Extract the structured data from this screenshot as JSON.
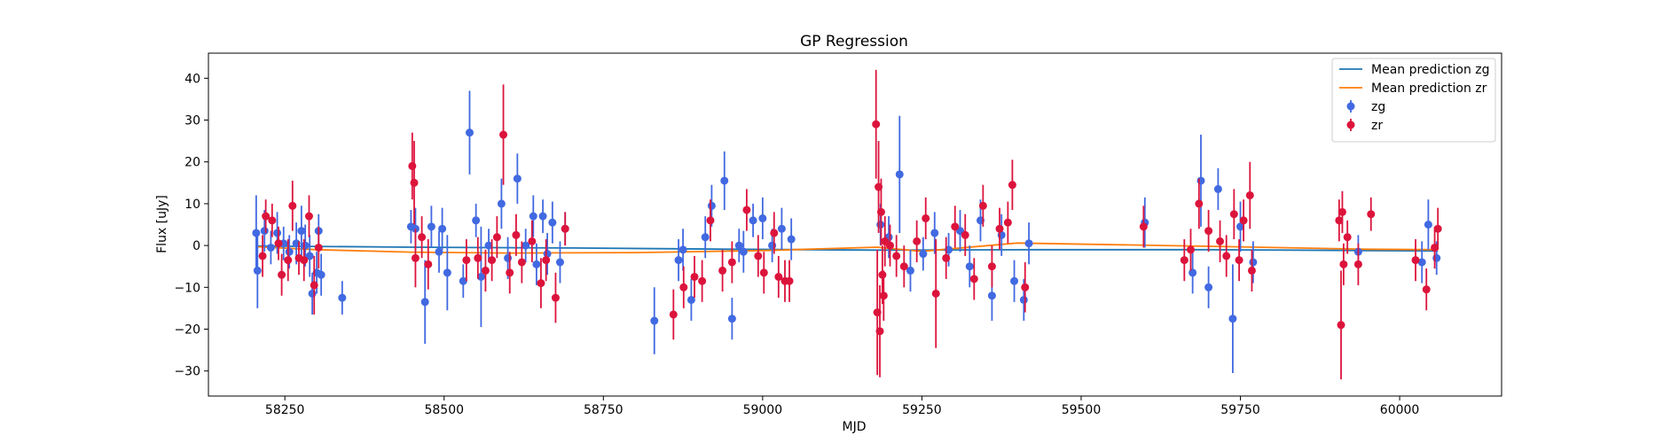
{
  "chart_data": {
    "type": "scatter",
    "title": "GP Regression",
    "xlabel": "MJD",
    "ylabel": "Flux [uJy]",
    "xlim": [
      58130,
      60160
    ],
    "ylim": [
      -36,
      46
    ],
    "xticks": [
      58250,
      58500,
      58750,
      59000,
      59250,
      59500,
      59750,
      60000
    ],
    "yticks": [
      -30,
      -20,
      -10,
      0,
      10,
      20,
      30,
      40
    ],
    "grid": false,
    "legend_position": "top-right",
    "series": [
      {
        "name": "Mean prediction zg",
        "kind": "line",
        "color": "#1f77b4",
        "x": [
          58205,
          58450,
          58700,
          58950,
          59180,
          59420,
          59700,
          59950,
          60060
        ],
        "y": [
          -0.1,
          -0.4,
          -0.6,
          -0.9,
          -1.1,
          -1.0,
          -1.0,
          -1.2,
          -1.3
        ]
      },
      {
        "name": "Mean prediction zr",
        "kind": "line",
        "color": "#ff7f0e",
        "x": [
          58205,
          58300,
          58450,
          58600,
          58800,
          59000,
          59180,
          59250,
          59400,
          59700,
          59950,
          60060
        ],
        "y": [
          -0.3,
          -1.0,
          -1.6,
          -1.8,
          -1.7,
          -1.2,
          -0.4,
          -1.4,
          0.6,
          -0.2,
          -0.9,
          -1.0
        ]
      },
      {
        "name": "zg",
        "kind": "errorbar",
        "color": "#4169e1",
        "points": [
          [
            58205,
            3,
            9
          ],
          [
            58207,
            -6,
            9
          ],
          [
            58218,
            3.5,
            5
          ],
          [
            58228,
            -0.5,
            4
          ],
          [
            58238,
            3,
            5
          ],
          [
            58248,
            0.5,
            4
          ],
          [
            58257,
            -1.5,
            4
          ],
          [
            58268,
            0.5,
            5
          ],
          [
            58276,
            3.5,
            6
          ],
          [
            58282,
            0,
            5
          ],
          [
            58289,
            -2.5,
            5
          ],
          [
            58293,
            -11.5,
            5
          ],
          [
            58300,
            -6.5,
            5
          ],
          [
            58303,
            3.5,
            4
          ],
          [
            58307,
            -7,
            5
          ],
          [
            58340,
            -12.5,
            4
          ],
          [
            58448,
            4.5,
            4
          ],
          [
            58455,
            4,
            5
          ],
          [
            58470,
            -13.5,
            10
          ],
          [
            58480,
            4.5,
            5
          ],
          [
            58492,
            -1.5,
            5
          ],
          [
            58497,
            4,
            5
          ],
          [
            58505,
            -6.5,
            9
          ],
          [
            58530,
            -8.5,
            4
          ],
          [
            58540,
            27,
            10
          ],
          [
            58550,
            6,
            4
          ],
          [
            58558,
            -7.5,
            12
          ],
          [
            58570,
            0,
            4
          ],
          [
            58590,
            10,
            6
          ],
          [
            58600,
            -3,
            5
          ],
          [
            58615,
            16,
            6
          ],
          [
            58628,
            0,
            4
          ],
          [
            58640,
            7,
            5
          ],
          [
            58645,
            -4.5,
            5
          ],
          [
            58655,
            7,
            4
          ],
          [
            58662,
            -2,
            5
          ],
          [
            58670,
            5.5,
            5
          ],
          [
            58682,
            -4,
            5
          ],
          [
            58690,
            4,
            4
          ],
          [
            58830,
            -18,
            8
          ],
          [
            58868,
            -3.5,
            5
          ],
          [
            58875,
            -1,
            5
          ],
          [
            58888,
            -13,
            5
          ],
          [
            58910,
            2,
            5
          ],
          [
            58920,
            9.5,
            5
          ],
          [
            58940,
            15.5,
            7
          ],
          [
            58952,
            -17.5,
            5
          ],
          [
            58963,
            0,
            4
          ],
          [
            58970,
            -1.5,
            5
          ],
          [
            58985,
            6,
            4
          ],
          [
            59000,
            6.5,
            5
          ],
          [
            59015,
            0,
            4
          ],
          [
            59030,
            4,
            5
          ],
          [
            59045,
            1.5,
            5
          ],
          [
            59185,
            5,
            5
          ],
          [
            59198,
            2,
            5
          ],
          [
            59215,
            17,
            14
          ],
          [
            59232,
            -6,
            5
          ],
          [
            59252,
            -2,
            4
          ],
          [
            59270,
            3,
            5
          ],
          [
            59292,
            -1,
            4
          ],
          [
            59310,
            3.5,
            5
          ],
          [
            59325,
            -5,
            5
          ],
          [
            59342,
            6,
            5
          ],
          [
            59360,
            -12,
            6
          ],
          [
            59375,
            2.5,
            5
          ],
          [
            59395,
            -8.5,
            5
          ],
          [
            59410,
            -13,
            5
          ],
          [
            59418,
            0.5,
            5
          ],
          [
            59600,
            5.5,
            6
          ],
          [
            59675,
            -6.5,
            5
          ],
          [
            59688,
            15.5,
            11
          ],
          [
            59700,
            -10,
            5
          ],
          [
            59715,
            13.5,
            5
          ],
          [
            59738,
            -17.5,
            13
          ],
          [
            59750,
            4.5,
            6
          ],
          [
            59770,
            -4,
            5
          ],
          [
            59935,
            -1.5,
            4
          ],
          [
            60035,
            -4,
            5
          ],
          [
            60045,
            5,
            6
          ],
          [
            60058,
            -3,
            4
          ]
        ]
      },
      {
        "name": "zr",
        "kind": "errorbar",
        "color": "#dc143c",
        "points": [
          [
            58215,
            -2.5,
            5
          ],
          [
            58220,
            7,
            4
          ],
          [
            58230,
            6,
            4
          ],
          [
            58240,
            0.5,
            4
          ],
          [
            58245,
            -7,
            5
          ],
          [
            58255,
            -3.5,
            5
          ],
          [
            58262,
            9.5,
            6
          ],
          [
            58272,
            -3,
            4
          ],
          [
            58280,
            -3.5,
            5
          ],
          [
            58288,
            7,
            5
          ],
          [
            58296,
            -9.5,
            7
          ],
          [
            58303,
            -0.5,
            5
          ],
          [
            58450,
            19,
            8
          ],
          [
            58453,
            15,
            10
          ],
          [
            58455,
            -3,
            7
          ],
          [
            58465,
            2,
            5
          ],
          [
            58475,
            -4.5,
            6
          ],
          [
            58535,
            -3.5,
            5
          ],
          [
            58553,
            -3,
            5
          ],
          [
            58565,
            -6,
            5
          ],
          [
            58575,
            -3.5,
            5
          ],
          [
            58583,
            2,
            5
          ],
          [
            58593,
            26.5,
            12
          ],
          [
            58603,
            -6.5,
            5
          ],
          [
            58613,
            2.5,
            5
          ],
          [
            58622,
            -4,
            5
          ],
          [
            58638,
            1,
            5
          ],
          [
            58652,
            -9,
            6
          ],
          [
            58660,
            -3.5,
            5
          ],
          [
            58675,
            -12.5,
            6
          ],
          [
            58690,
            4,
            4
          ],
          [
            58860,
            -16.5,
            6
          ],
          [
            58876,
            -10,
            5
          ],
          [
            58893,
            -7.5,
            5
          ],
          [
            58905,
            -8.5,
            5
          ],
          [
            58918,
            6,
            5
          ],
          [
            58937,
            -6,
            5
          ],
          [
            58952,
            -4,
            5
          ],
          [
            58975,
            8.5,
            5
          ],
          [
            58993,
            -2.5,
            5
          ],
          [
            59002,
            -6.5,
            5
          ],
          [
            59018,
            3,
            5
          ],
          [
            59025,
            -7.5,
            5
          ],
          [
            59035,
            -8.5,
            5
          ],
          [
            59042,
            -8.5,
            5
          ],
          [
            59178,
            29,
            13
          ],
          [
            59180,
            -16,
            15
          ],
          [
            59182,
            14,
            11
          ],
          [
            59184,
            -20.5,
            11
          ],
          [
            59186,
            8,
            8
          ],
          [
            59188,
            -7,
            7
          ],
          [
            59190,
            -12,
            6
          ],
          [
            59192,
            1,
            6
          ],
          [
            59200,
            0,
            5
          ],
          [
            59210,
            -2.5,
            5
          ],
          [
            59222,
            -5,
            5
          ],
          [
            59242,
            1,
            5
          ],
          [
            59256,
            6.5,
            5
          ],
          [
            59272,
            -11.5,
            13
          ],
          [
            59288,
            -3,
            5
          ],
          [
            59302,
            4.5,
            5
          ],
          [
            59318,
            2.5,
            5
          ],
          [
            59332,
            -8,
            5
          ],
          [
            59346,
            9.5,
            5
          ],
          [
            59360,
            -5,
            5
          ],
          [
            59372,
            4,
            5
          ],
          [
            59385,
            5.5,
            5
          ],
          [
            59392,
            14.5,
            6
          ],
          [
            59412,
            -10,
            6
          ],
          [
            59598,
            4.5,
            5
          ],
          [
            59662,
            -3.5,
            5
          ],
          [
            59672,
            -1,
            5
          ],
          [
            59685,
            10,
            6
          ],
          [
            59700,
            3.5,
            5
          ],
          [
            59718,
            1,
            5
          ],
          [
            59728,
            -2.5,
            5
          ],
          [
            59740,
            7.5,
            6
          ],
          [
            59748,
            -3.5,
            5
          ],
          [
            59755,
            6,
            5
          ],
          [
            59765,
            12,
            8
          ],
          [
            59768,
            -6,
            5
          ],
          [
            59905,
            6,
            5
          ],
          [
            59908,
            -19,
            13
          ],
          [
            59910,
            8,
            5
          ],
          [
            59912,
            -4.5,
            5
          ],
          [
            59918,
            2,
            4
          ],
          [
            59935,
            -4.5,
            5
          ],
          [
            59955,
            7.5,
            4
          ],
          [
            60025,
            -3.5,
            5
          ],
          [
            60042,
            -10.5,
            5
          ],
          [
            60055,
            -0.5,
            5
          ],
          [
            60060,
            4,
            5
          ]
        ]
      }
    ]
  }
}
